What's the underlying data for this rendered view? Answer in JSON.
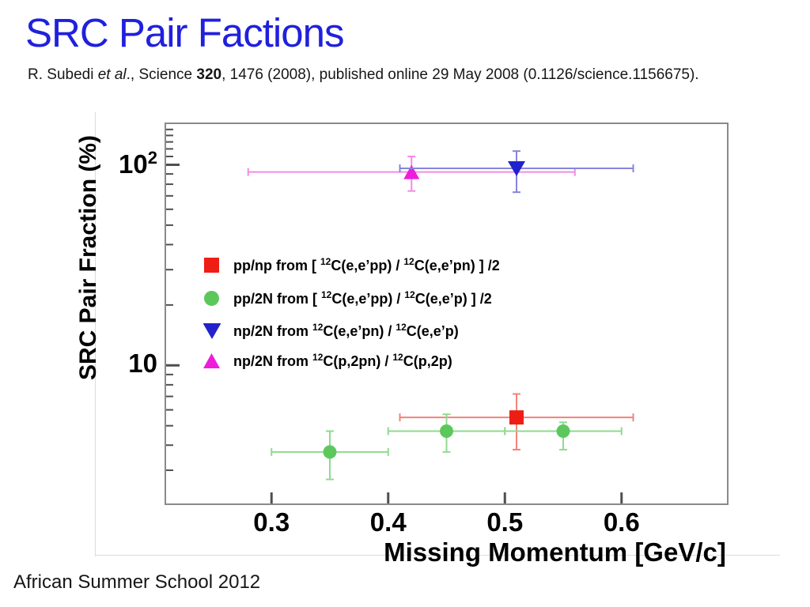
{
  "slide": {
    "title": "SRC Pair Factions",
    "citation_segments": [
      {
        "t": "R. Subedi "
      },
      {
        "t": "et al",
        "i": true
      },
      {
        "t": "., Science "
      },
      {
        "t": "320",
        "b": true
      },
      {
        "t": ", 1476 (2008), published online 29 May 2008 (0.1126/science.1156675)."
      }
    ],
    "footer": "African Summer School 2012"
  },
  "chart_data": {
    "type": "scatter",
    "title": "",
    "xlabel": "Missing Momentum [GeV/c]",
    "ylabel": "SRC Pair Fraction (%)",
    "x_range": [
      0.209,
      0.691
    ],
    "y_range": [
      2.03,
      161
    ],
    "y_scale": "log",
    "x_scale": "linear",
    "grid": false,
    "legend_position": "inside-middle-left",
    "frame_color": "#8a8a8a",
    "tick_color": "#4f4f4f",
    "x_ticks": [
      {
        "value": 0.3,
        "label": "0.3"
      },
      {
        "value": 0.4,
        "label": "0.4"
      },
      {
        "value": 0.5,
        "label": "0.5"
      },
      {
        "value": 0.6,
        "label": "0.6"
      }
    ],
    "y_ticks": [
      {
        "value": 10,
        "base": "10",
        "exp": ""
      },
      {
        "value": 100,
        "base": "10",
        "exp": "2"
      }
    ],
    "series": [
      {
        "name": "pp/np",
        "marker": "square",
        "color": "#ee1e14",
        "error_color": "#f1837b",
        "legend_label_parts": [
          {
            "t": "pp/np from [ "
          },
          {
            "sup": "12"
          },
          {
            "t": "C(e,e’pp) / "
          },
          {
            "sup": "12"
          },
          {
            "t": "C(e,e’pn) ] /2"
          }
        ],
        "points": [
          {
            "x": 0.51,
            "y": 5.5,
            "x_lo": 0.41,
            "x_hi": 0.61,
            "y_lo": 3.8,
            "y_hi": 7.2
          }
        ]
      },
      {
        "name": "pp/2N",
        "marker": "circle",
        "color": "#5cc85c",
        "error_color": "#90da90",
        "legend_label_parts": [
          {
            "t": "pp/2N from [ "
          },
          {
            "sup": "12"
          },
          {
            "t": "C(e,e’pp) / "
          },
          {
            "sup": "12"
          },
          {
            "t": "C(e,e’p) ] /2"
          }
        ],
        "points": [
          {
            "x": 0.35,
            "y": 3.7,
            "x_lo": 0.3,
            "x_hi": 0.4,
            "y_lo": 2.7,
            "y_hi": 4.7
          },
          {
            "x": 0.45,
            "y": 4.7,
            "x_lo": 0.4,
            "x_hi": 0.5,
            "y_lo": 3.7,
            "y_hi": 5.7
          },
          {
            "x": 0.55,
            "y": 4.7,
            "x_lo": 0.5,
            "x_hi": 0.6,
            "y_lo": 3.8,
            "y_hi": 5.2
          }
        ]
      },
      {
        "name": "np/2N (e,e'pn)",
        "marker": "triangle-down",
        "color": "#2222cc",
        "error_color": "#8585dd",
        "legend_label_parts": [
          {
            "t": "np/2N from "
          },
          {
            "sup": "12"
          },
          {
            "t": "C(e,e’pn) / "
          },
          {
            "sup": "12"
          },
          {
            "t": "C(e,e’p)"
          }
        ],
        "points": [
          {
            "x": 0.51,
            "y": 96,
            "x_lo": 0.41,
            "x_hi": 0.61,
            "y_lo": 73,
            "y_hi": 117
          }
        ]
      },
      {
        "name": "np/2N (p,2pn)",
        "marker": "triangle-up",
        "color": "#ee1cdb",
        "error_color": "#f38ae9",
        "legend_label_parts": [
          {
            "t": "np/2N from "
          },
          {
            "sup": "12"
          },
          {
            "t": "C(p,2pn) / "
          },
          {
            "sup": "12"
          },
          {
            "t": "C(p,2p)"
          }
        ],
        "points": [
          {
            "x": 0.42,
            "y": 92,
            "x_lo": 0.28,
            "x_hi": 0.56,
            "y_lo": 74,
            "y_hi": 110
          }
        ]
      }
    ]
  }
}
